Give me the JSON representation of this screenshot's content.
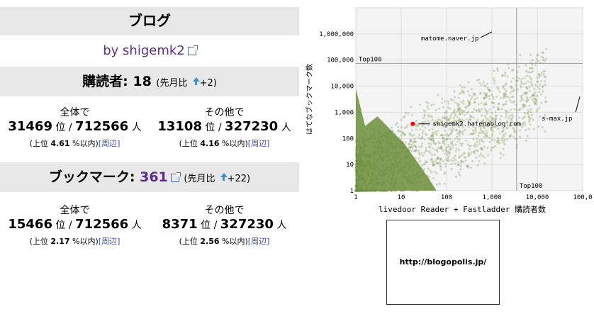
{
  "section_title": "ブログ",
  "byline": "by shigemk2",
  "subscribers": {
    "label": "購読者:",
    "count": "18",
    "compare_open": "(先月比",
    "compare_value": "+2)",
    "overall": {
      "label": "全体で",
      "rank": "31469",
      "rank_unit": "位 /",
      "total": "712566",
      "total_unit": "人",
      "sub_prefix": "(上位",
      "pct": "4.61",
      "sub_suffix": "%以内)",
      "link": "[周辺]"
    },
    "other": {
      "label": "その他で",
      "rank": "13108",
      "rank_unit": "位 /",
      "total": "327230",
      "total_unit": "人",
      "sub_prefix": "(上位",
      "pct": "4.16",
      "sub_suffix": "%以内)",
      "link": "[周辺]"
    }
  },
  "bookmarks": {
    "label": "ブックマーク:",
    "count": "361",
    "compare_open": "(先月比",
    "compare_value": "+22)",
    "overall": {
      "label": "全体で",
      "rank": "15466",
      "rank_unit": "位 /",
      "total": "712566",
      "total_unit": "人",
      "sub_prefix": "(上位",
      "pct": "2.17",
      "sub_suffix": "%以内)",
      "link": "[周辺]"
    },
    "other": {
      "label": "その他で",
      "rank": "8371",
      "rank_unit": "位 /",
      "total": "327230",
      "total_unit": "人",
      "sub_prefix": "(上位",
      "pct": "2.56",
      "sub_suffix": "%以内)",
      "link": "[周辺]"
    }
  },
  "chart_data": {
    "type": "scatter",
    "xlabel": "livedoor Reader + Fastladder 購読者数",
    "ylabel": "はてなブックマーク数",
    "x_scale": "log",
    "y_scale": "log",
    "xlim": [
      1,
      100000
    ],
    "ylim": [
      1,
      10000000
    ],
    "x_ticks": [
      "1",
      "10",
      "100",
      "1,000",
      "10,000",
      "100,0"
    ],
    "y_ticks": [
      "1",
      "10",
      "100",
      "1,000",
      "10,000",
      "100,000",
      "1,000,000"
    ],
    "top100_x_label": "Top100",
    "top100_y_label": "Top100",
    "top100_x": 3500,
    "top100_y": 75000,
    "highlight": {
      "x": 18,
      "y": 361,
      "label": "shigemk2.hatenablog.com",
      "color": "#ff0000"
    },
    "annotations": [
      {
        "label": "matome.naver.jp",
        "x": 1000,
        "y": 1200000
      },
      {
        "label": "s-max.jp",
        "x": 70000,
        "y": 4000
      }
    ],
    "point_color": "#6b8e3a",
    "grid": true
  },
  "banner": {
    "text": "http://blogopolis.jp/"
  }
}
